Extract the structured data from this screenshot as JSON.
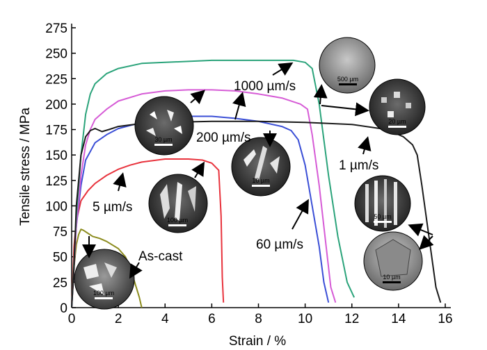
{
  "chart_data": {
    "type": "line",
    "xlabel": "Strain / %",
    "ylabel": "Tensile stress / MPa",
    "xlim": [
      0,
      16
    ],
    "ylim": [
      0,
      275
    ],
    "xticks": [
      0,
      2,
      4,
      6,
      8,
      10,
      12,
      14,
      16
    ],
    "yticks": [
      0,
      25,
      50,
      75,
      100,
      125,
      150,
      175,
      200,
      225,
      250,
      275
    ],
    "grid": false,
    "legend": "none",
    "series": [
      {
        "name": "As-cast",
        "color": "#8c8c1e",
        "x": [
          0,
          0.1,
          0.2,
          0.3,
          0.4,
          0.5,
          0.7,
          0.9,
          1.2,
          1.5,
          2.0,
          2.3,
          2.5,
          2.7,
          2.9,
          3.0
        ],
        "y": [
          0,
          40,
          62,
          72,
          77,
          76,
          73,
          70,
          68,
          65,
          58,
          50,
          40,
          25,
          10,
          0
        ]
      },
      {
        "name": "5 µm/s",
        "color": "#e8323c",
        "x": [
          0,
          0.1,
          0.2,
          0.4,
          0.7,
          1.0,
          1.5,
          2.0,
          2.5,
          3.0,
          4.0,
          5.0,
          5.6,
          6.0,
          6.3,
          6.4,
          6.45,
          6.5
        ],
        "y": [
          0,
          60,
          85,
          105,
          115,
          122,
          130,
          136,
          140,
          143,
          146,
          146,
          145,
          142,
          135,
          90,
          30,
          5
        ]
      },
      {
        "name": "60 µm/s",
        "color": "#3a4ed6",
        "x": [
          0,
          0.2,
          0.4,
          0.6,
          1.0,
          1.5,
          2.0,
          3.0,
          4.0,
          5.0,
          6.0,
          7.0,
          8.0,
          9.0,
          9.4,
          9.7,
          10.0,
          10.3,
          10.6,
          10.8,
          11.0
        ],
        "y": [
          0,
          80,
          120,
          145,
          162,
          170,
          176,
          182,
          186,
          188,
          188,
          186,
          183,
          178,
          174,
          165,
          140,
          100,
          60,
          25,
          5
        ]
      },
      {
        "name": "200 µm/s",
        "color": "#d65bd6",
        "x": [
          0,
          0.2,
          0.4,
          0.6,
          0.8,
          1.0,
          1.5,
          2.0,
          3.0,
          4.0,
          5.0,
          6.0,
          7.0,
          8.0,
          9.0,
          9.8,
          10.1,
          10.3,
          10.6,
          10.9,
          11.1,
          11.3
        ],
        "y": [
          0,
          80,
          130,
          160,
          175,
          185,
          195,
          203,
          210,
          213,
          214,
          214,
          213,
          210,
          206,
          200,
          195,
          170,
          120,
          60,
          20,
          5
        ]
      },
      {
        "name": "1000 µm/s",
        "color": "#2aa37a",
        "x": [
          0,
          0.2,
          0.4,
          0.6,
          0.8,
          1.0,
          1.5,
          2.0,
          3.0,
          4.0,
          5.0,
          6.0,
          7.0,
          8.0,
          9.0,
          9.5,
          10.0,
          10.3,
          10.6,
          11.0,
          11.4,
          11.8,
          12.1
        ],
        "y": [
          0,
          90,
          150,
          190,
          210,
          220,
          230,
          235,
          240,
          241,
          242,
          243,
          243,
          243,
          243,
          243,
          241,
          235,
          200,
          130,
          70,
          25,
          10
        ]
      },
      {
        "name": "1 µm/s",
        "color": "#1a1a1a",
        "x": [
          0,
          0.1,
          0.2,
          0.4,
          0.6,
          0.8,
          1.0,
          1.1,
          1.3,
          1.6,
          2.0,
          3.0,
          4.0,
          6.0,
          8.0,
          10.0,
          12.0,
          13.5,
          14.2,
          14.6,
          14.8,
          15.0,
          15.3,
          15.6,
          15.8
        ],
        "y": [
          0,
          40,
          100,
          150,
          168,
          174,
          176,
          175,
          173,
          175,
          178,
          181,
          182,
          183,
          183,
          182,
          180,
          175,
          168,
          160,
          150,
          120,
          70,
          20,
          5
        ]
      }
    ]
  },
  "annotations": {
    "as_cast": "As-cast",
    "r5": "5 µm/s",
    "r60": "60 µm/s",
    "r200": "200 µm/s",
    "r1000": "1000 µm/s",
    "r1": "1 µm/s"
  },
  "micrographs": [
    {
      "id": "as-cast",
      "scale": "100 µm"
    },
    {
      "id": "5um",
      "scale": "100 µm"
    },
    {
      "id": "200um",
      "scale": "30 µm"
    },
    {
      "id": "60um",
      "scale": "10 µm"
    },
    {
      "id": "1000um-a",
      "scale": "500 µm"
    },
    {
      "id": "1000um-b",
      "scale": "20 µm"
    },
    {
      "id": "1um-a",
      "scale": "50 µm"
    },
    {
      "id": "1um-b",
      "scale": "10 µm"
    }
  ]
}
